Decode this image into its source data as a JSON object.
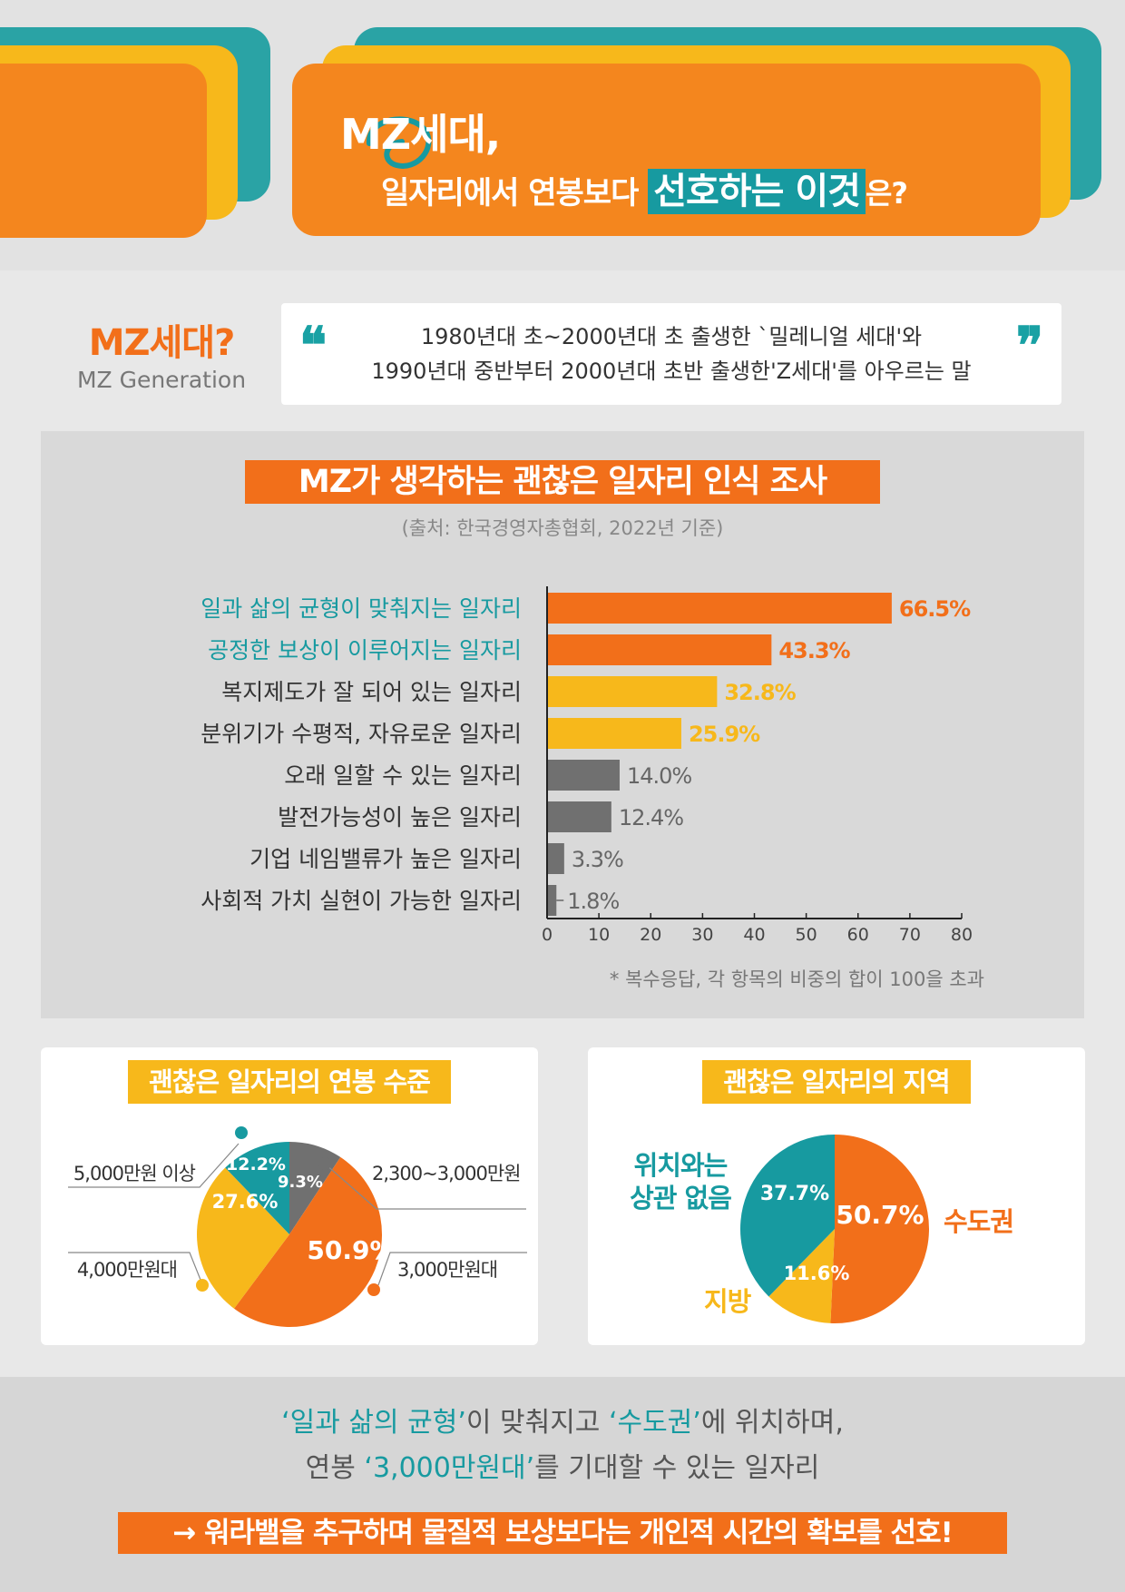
{
  "header": {
    "title_line1": "MZ세대,",
    "title_line2_prefix": "일자리에서 연봉보다",
    "title_line2_highlight": "선호하는 이것",
    "title_line2_suffix": "은?"
  },
  "definition": {
    "title": "MZ세대?",
    "subtitle": "MZ Generation",
    "quote_line1": "1980년대 초~2000년대 초 출생한 `밀레니얼 세대'와",
    "quote_line2": "1990년대 중반부터 2000년대 초반 출생한'Z세대'를 아우르는 말"
  },
  "survey": {
    "title": "MZ가 생각하는 괜찮은 일자리 인식 조사",
    "source": "(출처: 한국경영자총협회, 2022년 기준)",
    "note": "* 복수응답, 각 항목의 비중의 합이 100을 초과"
  },
  "colors": {
    "orange": "#f26f1a",
    "yellow": "#f7b81b",
    "teal": "#179aa0",
    "gray": "#707070"
  },
  "chart_data": [
    {
      "type": "bar",
      "orientation": "horizontal",
      "title": "MZ가 생각하는 괜찮은 일자리 인식 조사",
      "categories": [
        "일과 삶의 균형이 맞춰지는 일자리",
        "공정한 보상이 이루어지는 일자리",
        "복지제도가 잘 되어 있는 일자리",
        "분위기가 수평적, 자유로운 일자리",
        "오래 일할 수 있는 일자리",
        "발전가능성이 높은 일자리",
        "기업 네임밸류가 높은 일자리",
        "사회적 가치 실현이 가능한 일자리"
      ],
      "values": [
        66.5,
        43.3,
        32.8,
        25.9,
        14.0,
        12.4,
        3.3,
        1.8
      ],
      "value_labels": [
        "66.5%",
        "43.3%",
        "32.8%",
        "25.9%",
        "14.0%",
        "12.4%",
        "3.3%",
        "1.8%"
      ],
      "bar_colors": [
        "#f26f1a",
        "#f26f1a",
        "#f7b81b",
        "#f7b81b",
        "#707070",
        "#707070",
        "#707070",
        "#707070"
      ],
      "label_colors": [
        "#179aa0",
        "#179aa0",
        "#333333",
        "#333333",
        "#333333",
        "#333333",
        "#333333",
        "#333333"
      ],
      "xlim": [
        0,
        80
      ],
      "xticks": [
        "0",
        "10",
        "20",
        "30",
        "40",
        "50",
        "60",
        "70",
        "80"
      ],
      "grid": false
    },
    {
      "type": "pie",
      "title": "괜찮은 일자리의 연봉 수준",
      "slices": [
        {
          "label": "2,300~3,000만원",
          "value": 9.3,
          "value_label": "9.3%",
          "color": "#707070"
        },
        {
          "label": "3,000만원대",
          "value": 50.9,
          "value_label": "50.9%",
          "color": "#f26f1a"
        },
        {
          "label": "4,000만원대",
          "value": 27.6,
          "value_label": "27.6%",
          "color": "#f7b81b"
        },
        {
          "label": "5,000만원 이상",
          "value": 12.2,
          "value_label": "12.2%",
          "color": "#179aa0"
        }
      ]
    },
    {
      "type": "pie",
      "title": "괜찮은 일자리의 지역",
      "slices": [
        {
          "label": "수도권",
          "value": 50.7,
          "value_label": "50.7%",
          "color": "#f26f1a"
        },
        {
          "label": "지방",
          "value": 11.6,
          "value_label": "11.6%",
          "color": "#f7b81b"
        },
        {
          "label": "위치와는 상관 없음",
          "label_lines": [
            "위치와는",
            "상관 없음"
          ],
          "value": 37.7,
          "value_label": "37.7%",
          "color": "#179aa0"
        }
      ]
    }
  ],
  "conclusion": {
    "q1": "‘일과 삶의 균형’",
    "t1": "이 맞춰지고 ",
    "q2": "‘수도권’",
    "t2": "에 위치하며,",
    "t3": "연봉 ",
    "q3": "‘3,000만원대’",
    "t4": "를 기대할 수 있는 일자리",
    "final": "→ 워라밸을 추구하며 물질적 보상보다는 개인적 시간의 확보를 선호!"
  }
}
